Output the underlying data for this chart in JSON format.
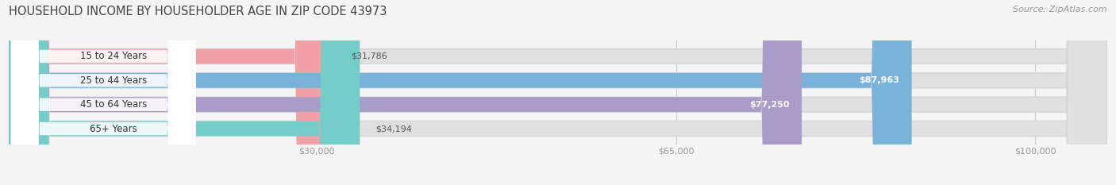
{
  "title": "HOUSEHOLD INCOME BY HOUSEHOLDER AGE IN ZIP CODE 43973",
  "source": "Source: ZipAtlas.com",
  "categories": [
    "15 to 24 Years",
    "25 to 44 Years",
    "45 to 64 Years",
    "65+ Years"
  ],
  "values": [
    31786,
    87963,
    77250,
    34194
  ],
  "labels": [
    "$31,786",
    "$87,963",
    "$77,250",
    "$34,194"
  ],
  "bar_colors": [
    "#f2a0a8",
    "#7ab3d9",
    "#a99cc8",
    "#74cdc8"
  ],
  "xmin": 0,
  "xmax": 107000,
  "xticks": [
    30000,
    65000,
    100000
  ],
  "xtick_labels": [
    "$30,000",
    "$65,000",
    "$100,000"
  ],
  "title_fontsize": 10.5,
  "source_fontsize": 8,
  "label_fontsize": 8,
  "category_fontsize": 8.5,
  "tick_fontsize": 8,
  "bg_color": "#f5f5f5",
  "plot_bg_color": "#f5f5f5",
  "bar_bg_color": "#e0e0e0",
  "bar_height": 0.62,
  "label_inside_threshold": 50000
}
